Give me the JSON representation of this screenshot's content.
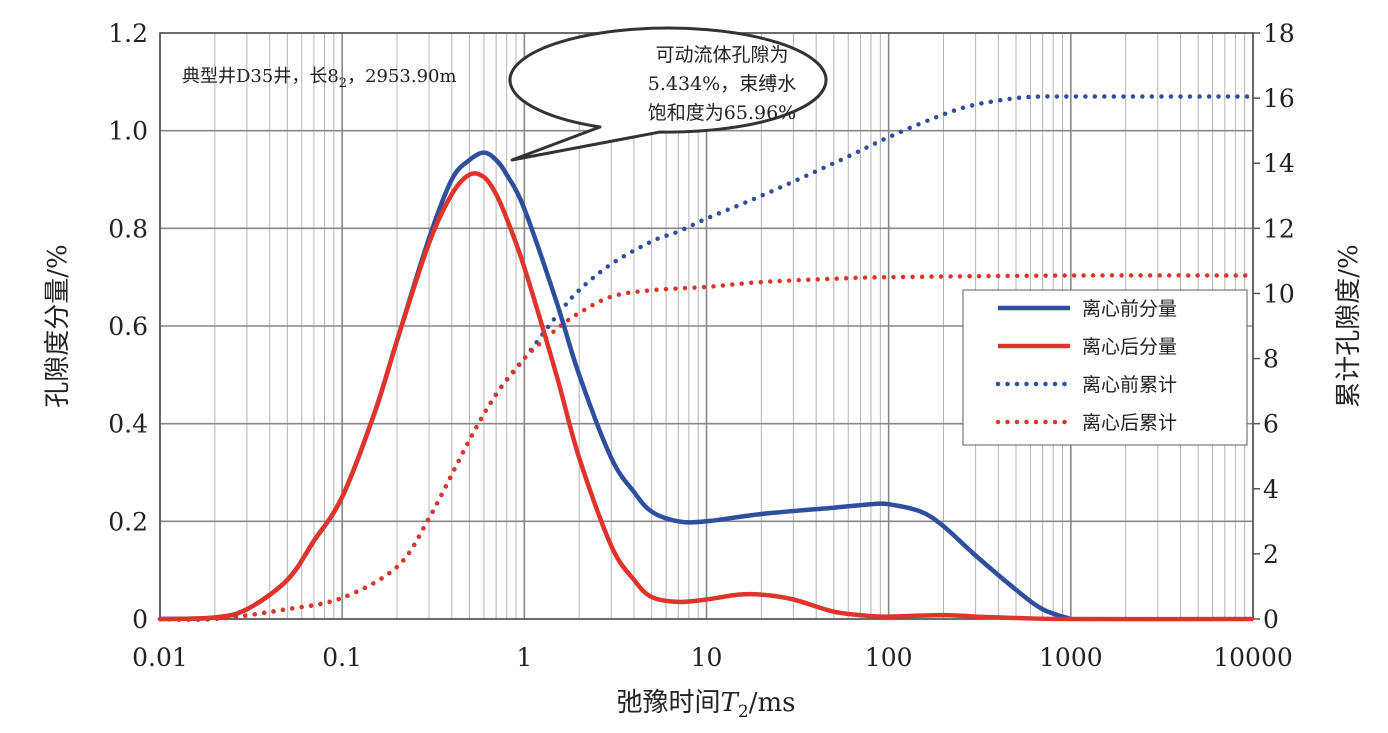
{
  "chart_data": {
    "type": "line",
    "xscale": "log",
    "xlim": [
      0.01,
      10000
    ],
    "ylim_left": [
      0,
      1.2
    ],
    "ylim_right": [
      0,
      18
    ],
    "x_ticks": [
      0.01,
      0.1,
      1,
      10,
      100,
      1000,
      10000
    ],
    "x_tick_labels": [
      "0.01",
      "0.1",
      "1",
      "10",
      "100",
      "1000",
      "10000"
    ],
    "y_left_ticks": [
      0,
      0.2,
      0.4,
      0.6,
      0.8,
      1.0,
      1.2
    ],
    "y_left_tick_labels": [
      "0",
      "0.2",
      "0.4",
      "0.6",
      "0.8",
      "1.0",
      "1.2"
    ],
    "y_right_ticks": [
      0,
      2,
      4,
      6,
      8,
      10,
      12,
      14,
      16,
      18
    ],
    "y_right_tick_labels": [
      "0",
      "2",
      "4",
      "6",
      "8",
      "10",
      "12",
      "14",
      "16",
      "18"
    ],
    "xlabel_prefix": "弛豫时间",
    "xlabel_var": "T",
    "xlabel_sub": "2",
    "xlabel_suffix": "/ms",
    "ylabel_left": "孔隙度分量/%",
    "ylabel_right": "累计孔隙度/%",
    "annotation_note": {
      "prefix": "典型井D35井，长8",
      "sub": "2",
      "suffix": "，2953.90m"
    },
    "callout_lines": [
      "可动流体孔隙为",
      "5.434%，束缚水",
      "饱和度为65.96%"
    ],
    "legend_position": "right-middle",
    "grid": true,
    "series": [
      {
        "name": "离心前分量",
        "axis": "left",
        "style": "solid",
        "color": "#2e4f9e",
        "points": [
          [
            0.01,
            0
          ],
          [
            0.02,
            0.003
          ],
          [
            0.03,
            0.02
          ],
          [
            0.05,
            0.08
          ],
          [
            0.07,
            0.16
          ],
          [
            0.1,
            0.25
          ],
          [
            0.15,
            0.42
          ],
          [
            0.2,
            0.57
          ],
          [
            0.3,
            0.78
          ],
          [
            0.4,
            0.9
          ],
          [
            0.5,
            0.94
          ],
          [
            0.6,
            0.955
          ],
          [
            0.7,
            0.94
          ],
          [
            0.8,
            0.91
          ],
          [
            1,
            0.84
          ],
          [
            1.5,
            0.65
          ],
          [
            2,
            0.5
          ],
          [
            3,
            0.33
          ],
          [
            4,
            0.26
          ],
          [
            5,
            0.22
          ],
          [
            7,
            0.2
          ],
          [
            10,
            0.2
          ],
          [
            20,
            0.215
          ],
          [
            50,
            0.228
          ],
          [
            80,
            0.235
          ],
          [
            100,
            0.235
          ],
          [
            150,
            0.22
          ],
          [
            200,
            0.19
          ],
          [
            300,
            0.13
          ],
          [
            500,
            0.06
          ],
          [
            700,
            0.02
          ],
          [
            1000,
            0
          ]
        ]
      },
      {
        "name": "离心后分量",
        "axis": "left",
        "style": "solid",
        "color": "#e0342a",
        "points": [
          [
            0.01,
            0
          ],
          [
            0.02,
            0.003
          ],
          [
            0.03,
            0.02
          ],
          [
            0.05,
            0.08
          ],
          [
            0.07,
            0.16
          ],
          [
            0.1,
            0.25
          ],
          [
            0.15,
            0.42
          ],
          [
            0.2,
            0.57
          ],
          [
            0.3,
            0.77
          ],
          [
            0.4,
            0.87
          ],
          [
            0.5,
            0.91
          ],
          [
            0.6,
            0.905
          ],
          [
            0.7,
            0.87
          ],
          [
            0.8,
            0.82
          ],
          [
            1,
            0.72
          ],
          [
            1.5,
            0.5
          ],
          [
            2,
            0.33
          ],
          [
            3,
            0.15
          ],
          [
            4,
            0.08
          ],
          [
            5,
            0.045
          ],
          [
            7,
            0.035
          ],
          [
            10,
            0.04
          ],
          [
            15,
            0.05
          ],
          [
            20,
            0.05
          ],
          [
            30,
            0.04
          ],
          [
            50,
            0.015
          ],
          [
            80,
            0.006
          ],
          [
            100,
            0.005
          ],
          [
            200,
            0.008
          ],
          [
            300,
            0.005
          ],
          [
            500,
            0.002
          ],
          [
            1000,
            0
          ],
          [
            10000,
            0
          ]
        ]
      },
      {
        "name": "离心前累计",
        "axis": "right",
        "style": "dotted",
        "color": "#2e4f9e",
        "points": [
          [
            0.01,
            0
          ],
          [
            0.02,
            0
          ],
          [
            0.05,
            0.3
          ],
          [
            0.1,
            0.65
          ],
          [
            0.2,
            1.6
          ],
          [
            0.3,
            3.1
          ],
          [
            0.5,
            5.5
          ],
          [
            0.7,
            6.9
          ],
          [
            1,
            8.0
          ],
          [
            1.5,
            9.3
          ],
          [
            2,
            10.1
          ],
          [
            3,
            10.9
          ],
          [
            5,
            11.6
          ],
          [
            7,
            11.9
          ],
          [
            10,
            12.3
          ],
          [
            20,
            13
          ],
          [
            50,
            14
          ],
          [
            100,
            14.8
          ],
          [
            200,
            15.5
          ],
          [
            300,
            15.8
          ],
          [
            500,
            16.0
          ],
          [
            700,
            16.05
          ],
          [
            1000,
            16.05
          ],
          [
            10000,
            16.05
          ]
        ]
      },
      {
        "name": "离心后累计",
        "axis": "right",
        "style": "dotted",
        "color": "#e0342a",
        "points": [
          [
            0.01,
            0
          ],
          [
            0.02,
            0
          ],
          [
            0.05,
            0.3
          ],
          [
            0.1,
            0.65
          ],
          [
            0.2,
            1.6
          ],
          [
            0.3,
            3.1
          ],
          [
            0.5,
            5.5
          ],
          [
            0.7,
            6.9
          ],
          [
            1,
            8.0
          ],
          [
            1.5,
            8.9
          ],
          [
            2,
            9.4
          ],
          [
            3,
            9.9
          ],
          [
            5,
            10.1
          ],
          [
            10,
            10.2
          ],
          [
            20,
            10.35
          ],
          [
            50,
            10.45
          ],
          [
            100,
            10.5
          ],
          [
            1000,
            10.55
          ],
          [
            10000,
            10.55
          ]
        ]
      }
    ]
  }
}
